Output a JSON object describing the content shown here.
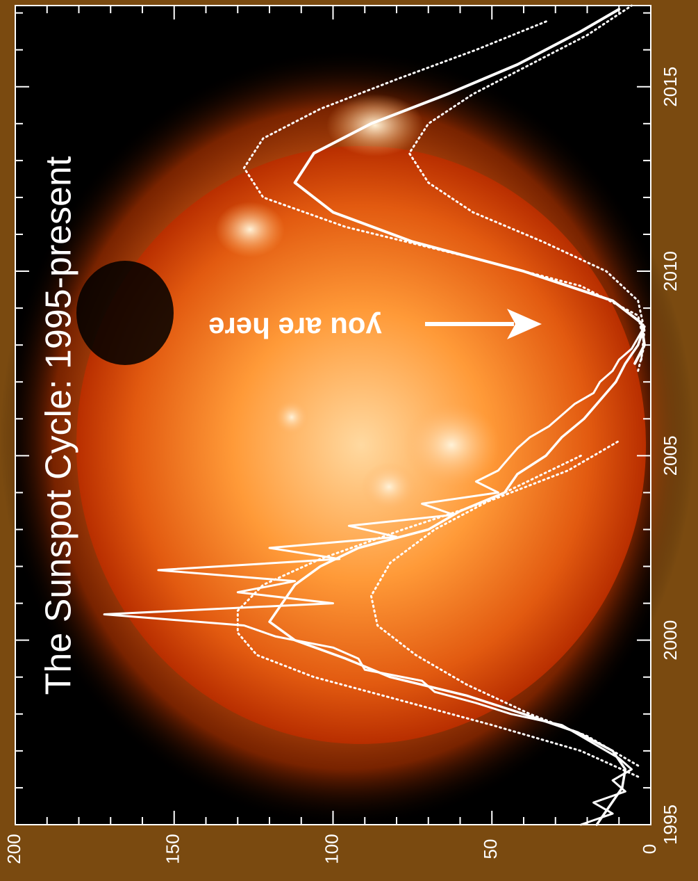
{
  "colors": {
    "frame": "#7a4a10",
    "background": "#000000",
    "sun_core": "#ffe2a8",
    "sun_mid": "#ff8a2a",
    "sun_edge": "#b82e00",
    "curve": "#ffffff"
  },
  "chart_data": {
    "type": "line",
    "orientation": "rotated-90-clockwise",
    "title": "The Sunspot Cycle: 1995-present",
    "annotation": {
      "text": "you are here",
      "x": 2008.3,
      "y": 95
    },
    "x_axis": {
      "range": [
        1995,
        2017.2
      ],
      "ticks": [
        1995,
        2000,
        2005,
        2010,
        2015
      ],
      "minor_step": 1
    },
    "y_axis": {
      "range": [
        0,
        200
      ],
      "ticks": [
        0,
        50,
        100,
        150,
        200
      ],
      "minor_step": 10
    },
    "series": [
      {
        "kind": "observed",
        "x": [
          1995.0,
          1995.3,
          1995.6,
          1995.9,
          1996.2,
          1996.5,
          1996.8,
          1997.1,
          1997.4,
          1997.7,
          1998.0,
          1998.3,
          1998.6,
          1998.9,
          1999.2,
          1999.5,
          1999.8,
          2000.1,
          2000.4,
          2000.7,
          2001.0,
          2001.3,
          2001.6,
          2001.9,
          2002.2,
          2002.5,
          2002.8,
          2003.1,
          2003.4,
          2003.7,
          2004.0,
          2004.3,
          2004.6,
          2004.9,
          2005.2,
          2005.5,
          2005.8,
          2006.1,
          2006.4,
          2006.7,
          2007.0,
          2007.3,
          2007.6,
          2007.9,
          2008.2,
          2008.5
        ],
        "y": [
          22,
          12,
          18,
          8,
          12,
          6,
          10,
          16,
          22,
          28,
          44,
          55,
          68,
          72,
          90,
          92,
          100,
          118,
          128,
          172,
          100,
          130,
          112,
          155,
          98,
          120,
          80,
          95,
          62,
          72,
          48,
          55,
          48,
          45,
          42,
          38,
          32,
          28,
          24,
          18,
          16,
          12,
          10,
          6,
          4,
          2
        ]
      },
      {
        "kind": "smoothed",
        "x": [
          1995.0,
          1995.5,
          1996.0,
          1996.5,
          1997.0,
          1997.5,
          1998.0,
          1998.5,
          1999.0,
          1999.5,
          2000.0,
          2000.5,
          2001.0,
          2001.5,
          2002.0,
          2002.5,
          2003.0,
          2003.5,
          2004.0,
          2004.5,
          2005.0,
          2005.5,
          2006.0,
          2006.5,
          2007.0,
          2007.5,
          2008.0,
          2008.5
        ],
        "y": [
          17,
          13,
          9,
          8,
          12,
          23,
          40,
          58,
          82,
          96,
          112,
          120,
          116,
          112,
          104,
          92,
          70,
          60,
          46,
          42,
          33,
          28,
          21,
          16,
          11,
          8,
          4,
          2
        ]
      },
      {
        "kind": "prediction-previous",
        "x": [
          1996.3,
          1997.0,
          1997.7,
          1998.4,
          1999.0,
          1999.6,
          2000.2,
          2000.8,
          2001.5,
          2002.2,
          2003.0,
          2003.8,
          2004.6,
          2005.4
        ],
        "y": [
          4,
          22,
          50,
          80,
          106,
          124,
          130,
          130,
          122,
          104,
          78,
          50,
          26,
          10
        ]
      },
      {
        "kind": "prediction-previous",
        "x": [
          1996.6,
          1997.4,
          1998.0,
          1998.8,
          1999.6,
          2000.4,
          2001.2,
          2002.1,
          2003.0,
          2004.0,
          2005.0
        ],
        "y": [
          4,
          20,
          38,
          58,
          74,
          86,
          88,
          82,
          68,
          46,
          22
        ]
      },
      {
        "kind": "prediction",
        "x": [
          2007.5,
          2008.0,
          2008.6,
          2009.2,
          2010.0,
          2010.8,
          2011.6,
          2012.4,
          2013.2,
          2014.0,
          2014.8,
          2015.6,
          2016.5,
          2017.1
        ],
        "y": [
          5,
          2,
          3,
          12,
          40,
          75,
          100,
          112,
          106,
          88,
          64,
          42,
          22,
          10
        ]
      },
      {
        "kind": "prediction-upper",
        "x": [
          2007.3,
          2008.0,
          2008.8,
          2009.6,
          2010.4,
          2011.2,
          2012.0,
          2012.8,
          2013.6,
          2014.4,
          2015.2,
          2016.0,
          2016.8
        ],
        "y": [
          4,
          2,
          4,
          22,
          58,
          96,
          122,
          128,
          122,
          104,
          80,
          55,
          32
        ]
      },
      {
        "kind": "prediction-lower",
        "x": [
          2007.6,
          2008.4,
          2009.2,
          2010.0,
          2010.8,
          2011.6,
          2012.4,
          2013.2,
          2014.0,
          2014.8,
          2015.6,
          2016.4,
          2017.2
        ],
        "y": [
          3,
          2,
          4,
          14,
          34,
          56,
          70,
          76,
          70,
          56,
          38,
          20,
          6
        ]
      }
    ]
  }
}
